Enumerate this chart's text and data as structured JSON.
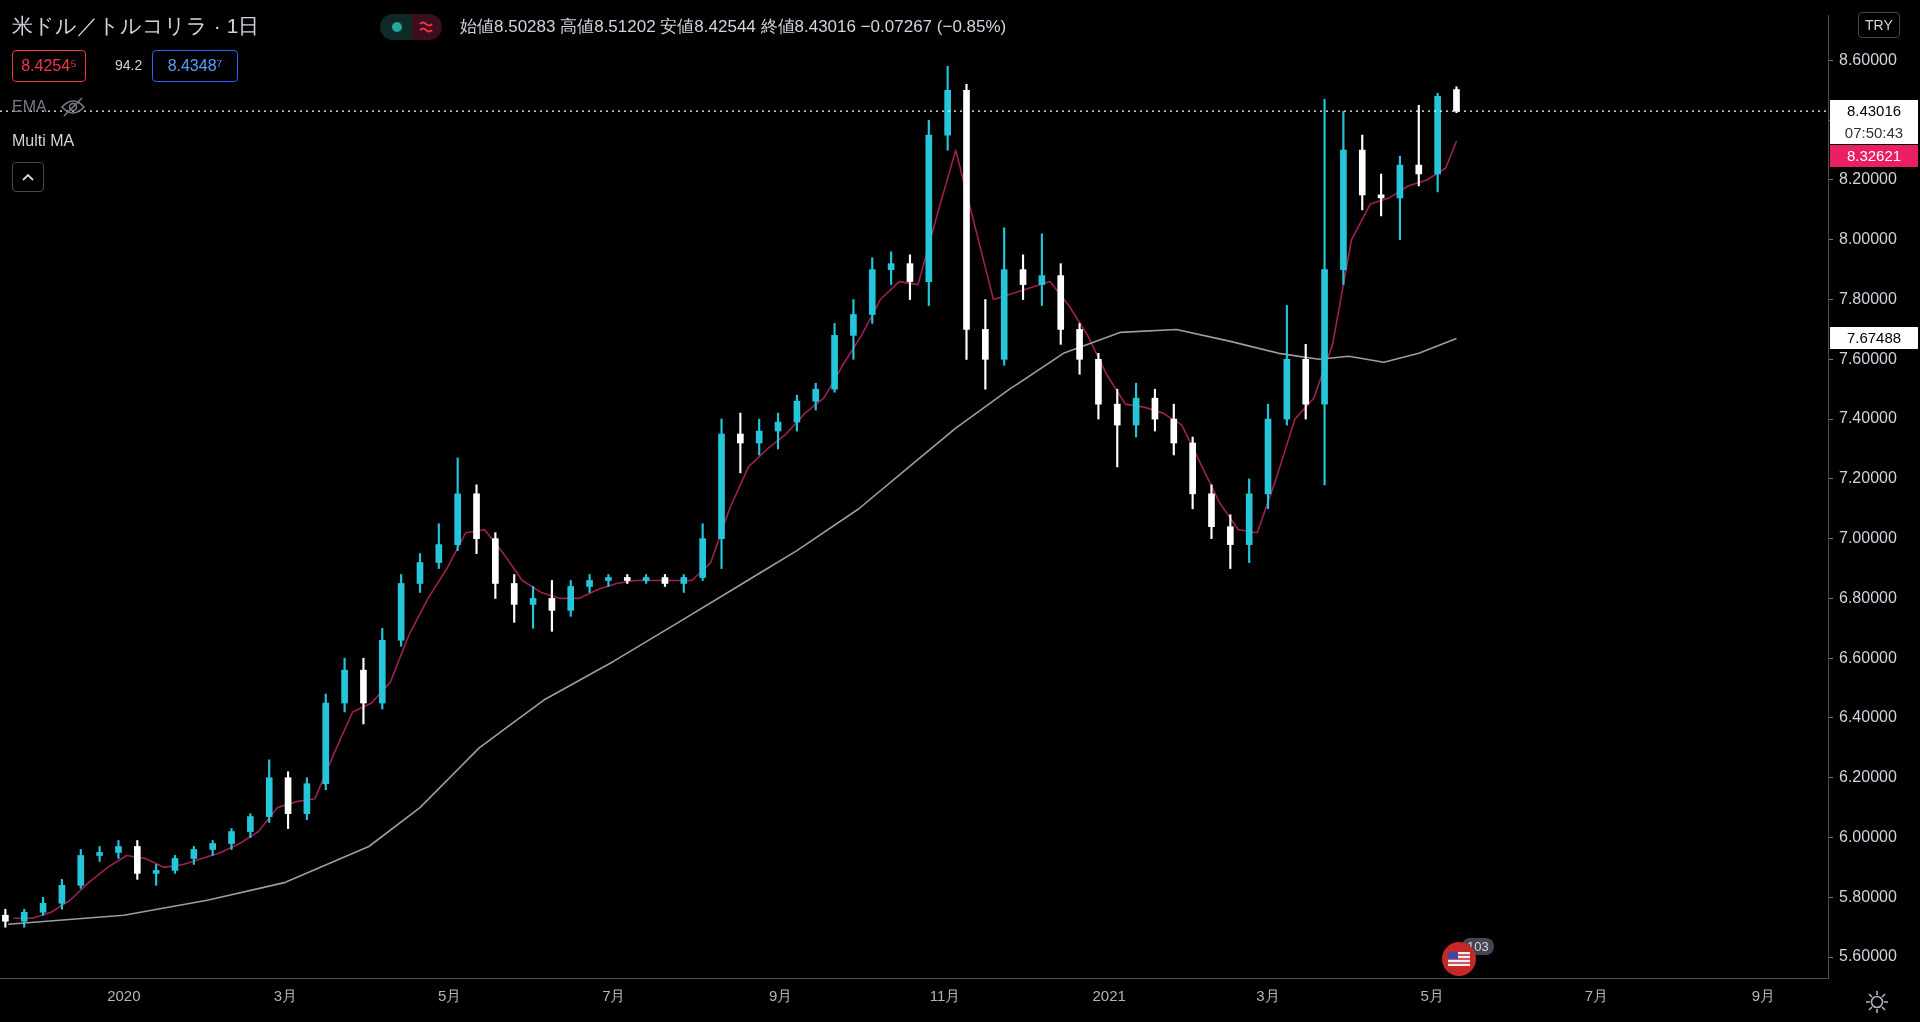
{
  "chart_data": {
    "type": "candlestick",
    "title": "米ドル／トルコリラ · 1日",
    "subtitle": "始値8.50283 高値8.51202 安値8.42544 終値8.43016 −0.07267 (−0.85%)",
    "annotations": [
      "8.4254⁵",
      "94.2",
      "8.4348⁷",
      "EMA",
      "Multi MA",
      "TRY",
      "07:50:43",
      "103",
      "8.32621",
      "7.67488"
    ],
    "xlim": [
      "2019-11-16",
      "2021-09-25"
    ],
    "xticks": [
      {
        "value": "2020-01-01",
        "label": "2020"
      },
      {
        "value": "2020-03-01",
        "label": "3月"
      },
      {
        "value": "2020-05-01",
        "label": "5月"
      },
      {
        "value": "2020-07-01",
        "label": "7月"
      },
      {
        "value": "2020-09-01",
        "label": "9月"
      },
      {
        "value": "2020-11-01",
        "label": "11月"
      },
      {
        "value": "2021-01-01",
        "label": "2021"
      },
      {
        "value": "2021-03-01",
        "label": "3月"
      },
      {
        "value": "2021-05-01",
        "label": "5月"
      },
      {
        "value": "2021-07-01",
        "label": "7月"
      },
      {
        "value": "2021-09-01",
        "label": "9月"
      }
    ],
    "ylim": [
      5.53,
      8.75
    ],
    "yticks": [
      {
        "value": 5.6,
        "label": "5.60000"
      },
      {
        "value": 5.8,
        "label": "5.80000"
      },
      {
        "value": 6.0,
        "label": "6.00000"
      },
      {
        "value": 6.2,
        "label": "6.20000"
      },
      {
        "value": 6.4,
        "label": "6.40000"
      },
      {
        "value": 6.6,
        "label": "6.60000"
      },
      {
        "value": 6.8,
        "label": "6.80000"
      },
      {
        "value": 7.0,
        "label": "7.00000"
      },
      {
        "value": 7.2,
        "label": "7.20000"
      },
      {
        "value": 7.4,
        "label": "7.40000"
      },
      {
        "value": 7.6,
        "label": "7.60000"
      },
      {
        "value": 7.8,
        "label": "7.80000"
      },
      {
        "value": 8.0,
        "label": "8.00000"
      },
      {
        "value": 8.2,
        "label": "8.20000"
      },
      {
        "value": 8.4,
        "label": null
      },
      {
        "value": 8.6,
        "label": "8.60000"
      }
    ],
    "ref_lines": [
      {
        "axis": "y",
        "value": 8.43016,
        "label": "8.43016",
        "color": "#ffffff",
        "line_style": "dotted"
      }
    ],
    "legend": false,
    "series": [
      {
        "type": "line",
        "color": "#9e9e9e",
        "x": [
          "2019-11-19",
          "2020-01-01",
          "2020-02-01",
          "2020-03-01",
          "2020-04-01",
          "2020-04-20",
          "2020-05-12",
          "2020-06-05",
          "2020-07-01",
          "2020-07-25",
          "2020-08-16",
          "2020-09-07",
          "2020-09-30",
          "2020-10-20",
          "2020-11-05",
          "2020-11-25",
          "2020-12-15",
          "2021-01-05",
          "2021-01-26",
          "2021-02-15",
          "2021-03-05",
          "2021-03-20",
          "2021-03-31",
          "2021-04-13",
          "2021-04-26",
          "2021-05-10"
        ],
        "values": [
          5.71,
          5.74,
          5.79,
          5.85,
          5.97,
          6.1,
          6.3,
          6.46,
          6.59,
          6.72,
          6.84,
          6.96,
          7.1,
          7.25,
          7.37,
          7.5,
          7.62,
          7.69,
          7.7,
          7.66,
          7.62,
          7.6,
          7.61,
          7.59,
          7.62,
          7.67
        ]
      },
      {
        "type": "line",
        "color": "#a0204f",
        "x": [
          "2019-11-21",
          "2019-11-28",
          "2019-12-05",
          "2019-12-12",
          "2019-12-19",
          "2019-12-26",
          "2020-01-02",
          "2020-01-09",
          "2020-01-16",
          "2020-01-23",
          "2020-01-30",
          "2020-02-06",
          "2020-02-13",
          "2020-02-20",
          "2020-02-27",
          "2020-03-05",
          "2020-03-12",
          "2020-03-19",
          "2020-03-26",
          "2020-04-02",
          "2020-04-09",
          "2020-04-16",
          "2020-04-23",
          "2020-04-30",
          "2020-05-07",
          "2020-05-14",
          "2020-05-21",
          "2020-05-28",
          "2020-06-04",
          "2020-06-11",
          "2020-06-18",
          "2020-06-25",
          "2020-07-02",
          "2020-07-09",
          "2020-07-16",
          "2020-07-23",
          "2020-07-30",
          "2020-08-06",
          "2020-08-13",
          "2020-08-20",
          "2020-08-27",
          "2020-09-03",
          "2020-09-10",
          "2020-09-17",
          "2020-09-24",
          "2020-10-01",
          "2020-10-08",
          "2020-10-15",
          "2020-10-22",
          "2020-10-29",
          "2020-11-05",
          "2020-11-12",
          "2020-11-19",
          "2020-11-26",
          "2020-12-03",
          "2020-12-10",
          "2020-12-17",
          "2020-12-24",
          "2020-12-31",
          "2021-01-07",
          "2021-01-14",
          "2021-01-21",
          "2021-01-28",
          "2021-02-04",
          "2021-02-11",
          "2021-02-18",
          "2021-02-25",
          "2021-03-04",
          "2021-03-11",
          "2021-03-18",
          "2021-03-25",
          "2021-04-01",
          "2021-04-08",
          "2021-04-15",
          "2021-04-22",
          "2021-04-29",
          "2021-05-06",
          "2021-05-10"
        ],
        "values": [
          5.73,
          5.73,
          5.75,
          5.79,
          5.85,
          5.9,
          5.94,
          5.93,
          5.9,
          5.91,
          5.93,
          5.95,
          5.98,
          6.02,
          6.1,
          6.12,
          6.13,
          6.28,
          6.42,
          6.45,
          6.52,
          6.68,
          6.8,
          6.9,
          7.02,
          7.03,
          6.95,
          6.86,
          6.82,
          6.8,
          6.8,
          6.83,
          6.85,
          6.86,
          6.86,
          6.86,
          6.86,
          6.92,
          7.1,
          7.24,
          7.3,
          7.35,
          7.42,
          7.47,
          7.58,
          7.68,
          7.8,
          7.86,
          7.85,
          8.08,
          8.3,
          8.05,
          7.8,
          7.82,
          7.84,
          7.86,
          7.78,
          7.68,
          7.55,
          7.45,
          7.44,
          7.42,
          7.38,
          7.25,
          7.12,
          7.03,
          7.02,
          7.2,
          7.4,
          7.47,
          7.65,
          8.0,
          8.12,
          8.14,
          8.18,
          8.2,
          8.24,
          8.33
        ]
      },
      {
        "x": [
          "2019-11-18",
          "2019-11-25",
          "2019-12-02",
          "2019-12-09",
          "2019-12-16",
          "2019-12-23",
          "2019-12-30",
          "2020-01-06",
          "2020-01-13",
          "2020-01-20",
          "2020-01-27",
          "2020-02-03",
          "2020-02-10",
          "2020-02-17",
          "2020-02-24",
          "2020-03-02",
          "2020-03-09",
          "2020-03-16",
          "2020-03-23",
          "2020-03-30",
          "2020-04-06",
          "2020-04-13",
          "2020-04-20",
          "2020-04-27",
          "2020-05-04",
          "2020-05-11",
          "2020-05-18",
          "2020-05-25",
          "2020-06-01",
          "2020-06-08",
          "2020-06-15",
          "2020-06-22",
          "2020-06-29",
          "2020-07-06",
          "2020-07-13",
          "2020-07-20",
          "2020-07-27",
          "2020-08-03",
          "2020-08-10",
          "2020-08-17",
          "2020-08-24",
          "2020-08-31",
          "2020-09-07",
          "2020-09-14",
          "2020-09-21",
          "2020-09-28",
          "2020-10-05",
          "2020-10-12",
          "2020-10-19",
          "2020-10-26",
          "2020-11-02",
          "2020-11-09",
          "2020-11-16",
          "2020-11-23",
          "2020-11-30",
          "2020-12-07",
          "2020-12-14",
          "2020-12-21",
          "2020-12-28",
          "2021-01-04",
          "2021-01-11",
          "2021-01-18",
          "2021-01-25",
          "2021-02-01",
          "2021-02-08",
          "2021-02-15",
          "2021-02-22",
          "2021-03-01",
          "2021-03-08",
          "2021-03-15",
          "2021-03-22",
          "2021-03-29",
          "2021-04-05",
          "2021-04-12",
          "2021-04-19",
          "2021-04-26",
          "2021-05-03",
          "2021-05-10"
        ],
        "ohlc": [
          [
            5.74,
            5.76,
            5.7,
            5.72
          ],
          [
            5.72,
            5.76,
            5.7,
            5.75
          ],
          [
            5.75,
            5.8,
            5.74,
            5.78
          ],
          [
            5.78,
            5.86,
            5.76,
            5.84
          ],
          [
            5.84,
            5.96,
            5.83,
            5.94
          ],
          [
            5.94,
            5.97,
            5.92,
            5.95
          ],
          [
            5.95,
            5.99,
            5.93,
            5.97
          ],
          [
            5.97,
            5.99,
            5.86,
            5.88
          ],
          [
            5.88,
            5.91,
            5.84,
            5.89
          ],
          [
            5.89,
            5.94,
            5.88,
            5.93
          ],
          [
            5.93,
            5.97,
            5.91,
            5.96
          ],
          [
            5.96,
            5.99,
            5.94,
            5.98
          ],
          [
            5.98,
            6.03,
            5.96,
            6.02
          ],
          [
            6.02,
            6.08,
            6.0,
            6.07
          ],
          [
            6.07,
            6.26,
            6.05,
            6.2
          ],
          [
            6.2,
            6.22,
            6.03,
            6.08
          ],
          [
            6.08,
            6.2,
            6.06,
            6.18
          ],
          [
            6.18,
            6.48,
            6.16,
            6.45
          ],
          [
            6.45,
            6.6,
            6.42,
            6.56
          ],
          [
            6.56,
            6.6,
            6.38,
            6.45
          ],
          [
            6.45,
            6.7,
            6.43,
            6.66
          ],
          [
            6.66,
            6.88,
            6.64,
            6.85
          ],
          [
            6.85,
            6.95,
            6.82,
            6.92
          ],
          [
            6.92,
            7.05,
            6.9,
            6.98
          ],
          [
            6.98,
            7.27,
            6.96,
            7.15
          ],
          [
            7.15,
            7.18,
            6.95,
            7.0
          ],
          [
            7.0,
            7.02,
            6.8,
            6.85
          ],
          [
            6.85,
            6.88,
            6.72,
            6.78
          ],
          [
            6.78,
            6.84,
            6.7,
            6.8
          ],
          [
            6.8,
            6.86,
            6.69,
            6.76
          ],
          [
            6.76,
            6.86,
            6.74,
            6.84
          ],
          [
            6.84,
            6.88,
            6.82,
            6.86
          ],
          [
            6.86,
            6.88,
            6.84,
            6.87
          ],
          [
            6.87,
            6.88,
            6.85,
            6.86
          ],
          [
            6.86,
            6.88,
            6.85,
            6.87
          ],
          [
            6.87,
            6.88,
            6.84,
            6.85
          ],
          [
            6.85,
            6.88,
            6.82,
            6.87
          ],
          [
            6.87,
            7.05,
            6.86,
            7.0
          ],
          [
            7.0,
            7.4,
            6.9,
            7.35
          ],
          [
            7.35,
            7.42,
            7.22,
            7.32
          ],
          [
            7.32,
            7.4,
            7.28,
            7.36
          ],
          [
            7.36,
            7.42,
            7.3,
            7.39
          ],
          [
            7.39,
            7.48,
            7.36,
            7.46
          ],
          [
            7.46,
            7.52,
            7.43,
            7.5
          ],
          [
            7.5,
            7.72,
            7.49,
            7.68
          ],
          [
            7.68,
            7.8,
            7.6,
            7.75
          ],
          [
            7.75,
            7.94,
            7.72,
            7.9
          ],
          [
            7.9,
            7.96,
            7.85,
            7.92
          ],
          [
            7.92,
            7.95,
            7.8,
            7.86
          ],
          [
            7.86,
            8.4,
            7.78,
            8.35
          ],
          [
            8.35,
            8.58,
            8.3,
            8.5
          ],
          [
            8.5,
            8.52,
            7.6,
            7.7
          ],
          [
            7.7,
            7.8,
            7.5,
            7.6
          ],
          [
            7.6,
            8.04,
            7.58,
            7.9
          ],
          [
            7.9,
            7.95,
            7.8,
            7.85
          ],
          [
            7.85,
            8.02,
            7.78,
            7.88
          ],
          [
            7.88,
            7.92,
            7.65,
            7.7
          ],
          [
            7.7,
            7.72,
            7.55,
            7.6
          ],
          [
            7.6,
            7.62,
            7.4,
            7.45
          ],
          [
            7.45,
            7.5,
            7.24,
            7.38
          ],
          [
            7.38,
            7.52,
            7.34,
            7.47
          ],
          [
            7.47,
            7.5,
            7.36,
            7.4
          ],
          [
            7.4,
            7.45,
            7.28,
            7.32
          ],
          [
            7.32,
            7.34,
            7.1,
            7.15
          ],
          [
            7.15,
            7.18,
            7.0,
            7.04
          ],
          [
            7.04,
            7.08,
            6.9,
            6.98
          ],
          [
            6.98,
            7.2,
            6.92,
            7.15
          ],
          [
            7.15,
            7.45,
            7.1,
            7.4
          ],
          [
            7.4,
            7.78,
            7.38,
            7.6
          ],
          [
            7.6,
            7.65,
            7.4,
            7.45
          ],
          [
            7.45,
            8.47,
            7.18,
            7.9
          ],
          [
            7.9,
            8.43,
            7.85,
            8.3
          ],
          [
            8.3,
            8.35,
            8.1,
            8.15
          ],
          [
            8.15,
            8.22,
            8.08,
            8.14
          ],
          [
            8.14,
            8.28,
            8.0,
            8.25
          ],
          [
            8.25,
            8.45,
            8.18,
            8.22
          ],
          [
            8.22,
            8.49,
            8.16,
            8.48
          ],
          [
            8.50283,
            8.51202,
            8.42544,
            8.43016
          ]
        ],
        "colors": [
          "#ffffff",
          "#26c6da",
          "#26c6da",
          "#26c6da",
          "#26c6da",
          "#26c6da",
          "#26c6da",
          "#ffffff",
          "#26c6da",
          "#26c6da",
          "#26c6da",
          "#26c6da",
          "#26c6da",
          "#26c6da",
          "#26c6da",
          "#ffffff",
          "#26c6da",
          "#26c6da",
          "#26c6da",
          "#ffffff",
          "#26c6da",
          "#26c6da",
          "#26c6da",
          "#26c6da",
          "#26c6da",
          "#ffffff",
          "#ffffff",
          "#ffffff",
          "#26c6da",
          "#ffffff",
          "#26c6da",
          "#26c6da",
          "#26c6da",
          "#ffffff",
          "#26c6da",
          "#ffffff",
          "#26c6da",
          "#26c6da",
          "#26c6da",
          "#ffffff",
          "#26c6da",
          "#26c6da",
          "#26c6da",
          "#26c6da",
          "#26c6da",
          "#26c6da",
          "#26c6da",
          "#26c6da",
          "#ffffff",
          "#26c6da",
          "#26c6da",
          "#ffffff",
          "#ffffff",
          "#26c6da",
          "#ffffff",
          "#26c6da",
          "#ffffff",
          "#ffffff",
          "#ffffff",
          "#ffffff",
          "#26c6da",
          "#ffffff",
          "#ffffff",
          "#ffffff",
          "#ffffff",
          "#ffffff",
          "#26c6da",
          "#26c6da",
          "#26c6da",
          "#ffffff",
          "#26c6da",
          "#26c6da",
          "#ffffff",
          "#ffffff",
          "#26c6da",
          "#ffffff",
          "#26c6da",
          "#ffffff"
        ]
      }
    ]
  }
}
